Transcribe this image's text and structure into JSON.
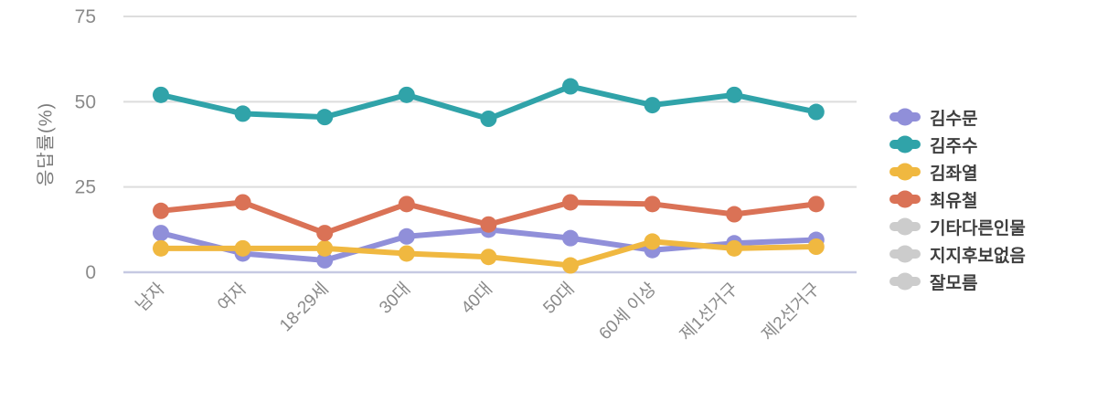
{
  "chart_data": {
    "type": "line",
    "categories": [
      "남자",
      "여자",
      "18-29세",
      "30대",
      "40대",
      "50대",
      "60세 이상",
      "제1선거구",
      "제2선거구"
    ],
    "series": [
      {
        "name": "김수문",
        "color": "#908FD9",
        "visible": true,
        "values": [
          11.5,
          5.5,
          3.5,
          10.5,
          12.5,
          10,
          6.5,
          8.5,
          9.5
        ]
      },
      {
        "name": "김주수",
        "color": "#30A3A9",
        "visible": true,
        "values": [
          52,
          46.5,
          45.5,
          52,
          45,
          54.5,
          49,
          52,
          47
        ]
      },
      {
        "name": "김좌열",
        "color": "#F0B840",
        "visible": true,
        "values": [
          7,
          7,
          7,
          5.5,
          4.5,
          2,
          9,
          7,
          7.5
        ]
      },
      {
        "name": "최유철",
        "color": "#DA7256",
        "visible": true,
        "values": [
          18,
          20.5,
          11.5,
          20,
          14,
          20.5,
          20,
          17,
          20
        ]
      },
      {
        "name": "기타다른인물",
        "color": "#CCCCCC",
        "visible": false,
        "values": []
      },
      {
        "name": "지지후보없음",
        "color": "#CCCCCC",
        "visible": false,
        "values": []
      },
      {
        "name": "잘모름",
        "color": "#CCCCCC",
        "visible": false,
        "values": []
      }
    ],
    "ylabel": "응답률(%)",
    "yticks": [
      0,
      25,
      50,
      75
    ],
    "ylim": [
      0,
      75
    ],
    "grid": true,
    "legend_position": "right"
  },
  "styles": {
    "background": "#FFFFFF",
    "grid_color": "#DDDDDD",
    "zero_line_color": "#C6C9E2",
    "tick_text_color": "#8A8A8A",
    "axis_title_color": "#7A7A7A",
    "legend_text_color": "#3F3F3F",
    "disabled_series_color": "#CCCCCC"
  }
}
